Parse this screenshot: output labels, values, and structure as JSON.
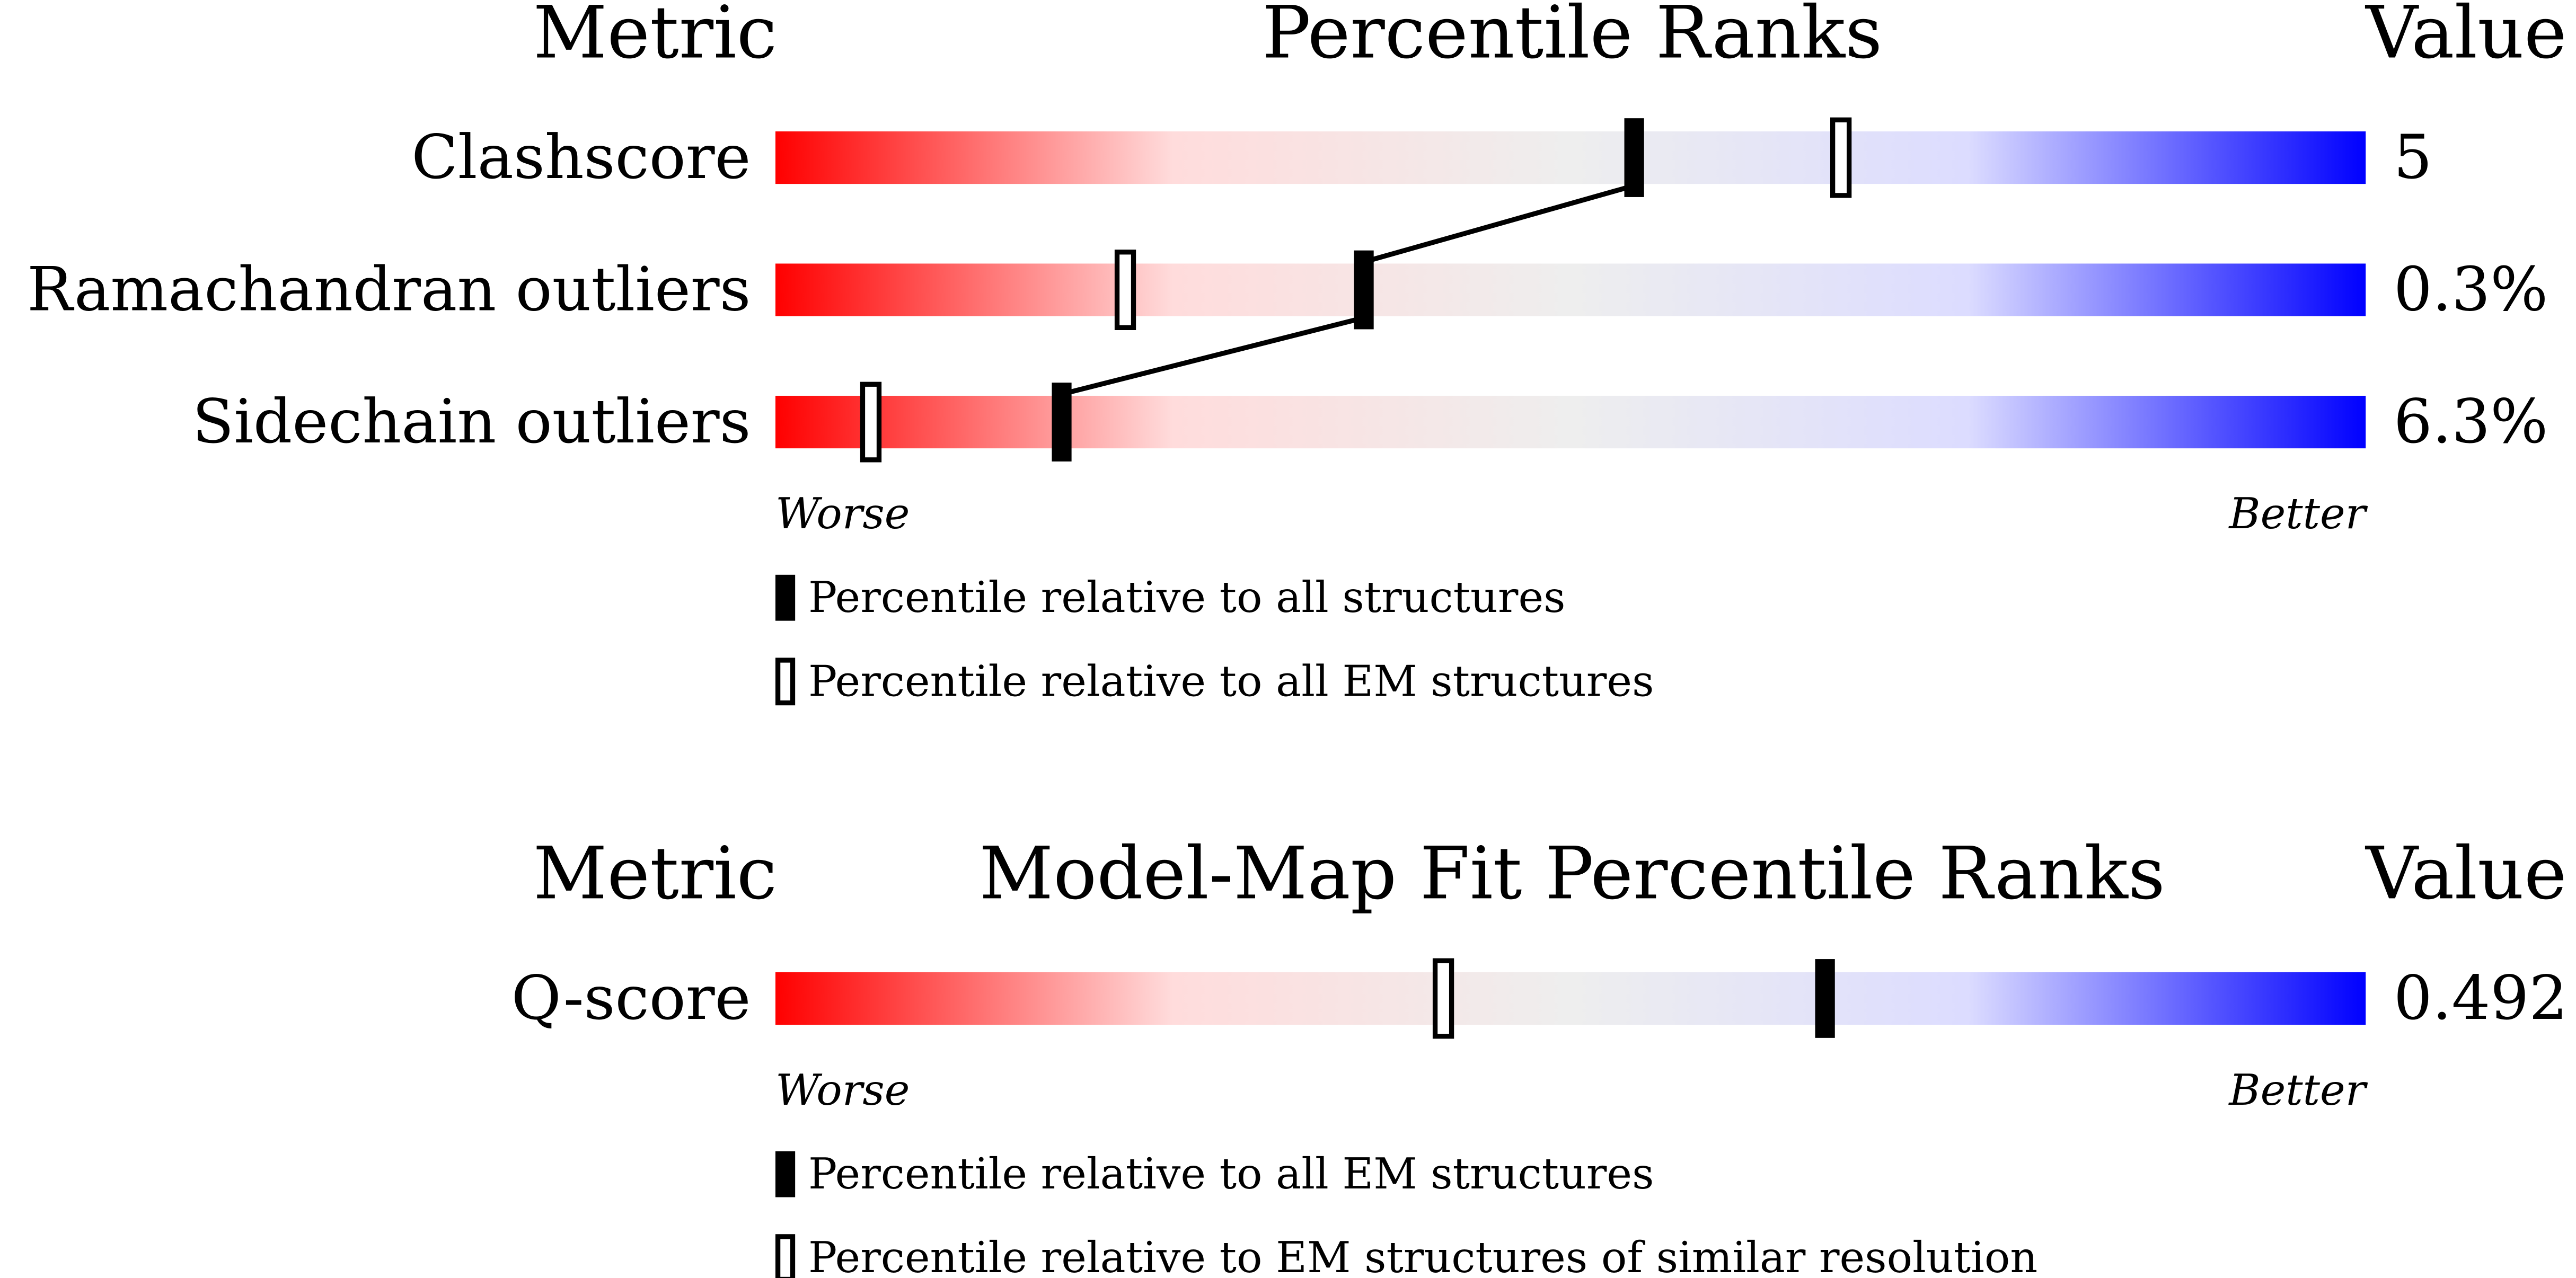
{
  "panels": [
    {
      "header": {
        "metric": "Metric",
        "title": "Percentile Ranks",
        "value": "Value"
      },
      "xlim": [
        0,
        100
      ],
      "colors": [
        "#ff0000",
        "#ffdcdc",
        "#eeeeee",
        "#dcdcff",
        "#0000ff"
      ],
      "rows": [
        {
          "label": "Clashscore",
          "value": "5",
          "percentile_all": 54,
          "percentile_em": 67
        },
        {
          "label": "Ramachandran outliers",
          "value": "0.3%",
          "percentile_all": 37,
          "percentile_em": 22
        },
        {
          "label": "Sidechain outliers",
          "value": "6.3%",
          "percentile_all": 18,
          "percentile_em": 6
        }
      ],
      "worse": "Worse",
      "better": "Better",
      "legend": {
        "all": "Percentile relative to all structures",
        "em": "Percentile relative to all EM structures"
      }
    },
    {
      "header": {
        "metric": "Metric",
        "title": "Model-Map Fit Percentile Ranks",
        "value": "Value"
      },
      "xlim": [
        0,
        100
      ],
      "colors": [
        "#ff0000",
        "#ffdcdc",
        "#eeeeee",
        "#dcdcff",
        "#0000ff"
      ],
      "rows": [
        {
          "label": "Q-score",
          "value": "0.492",
          "percentile_all": 66,
          "percentile_em": 42
        }
      ],
      "worse": "Worse",
      "better": "Better",
      "legend": {
        "all": "Percentile relative to all EM structures",
        "em": "Percentile relative to EM structures of similar resolution"
      }
    }
  ]
}
